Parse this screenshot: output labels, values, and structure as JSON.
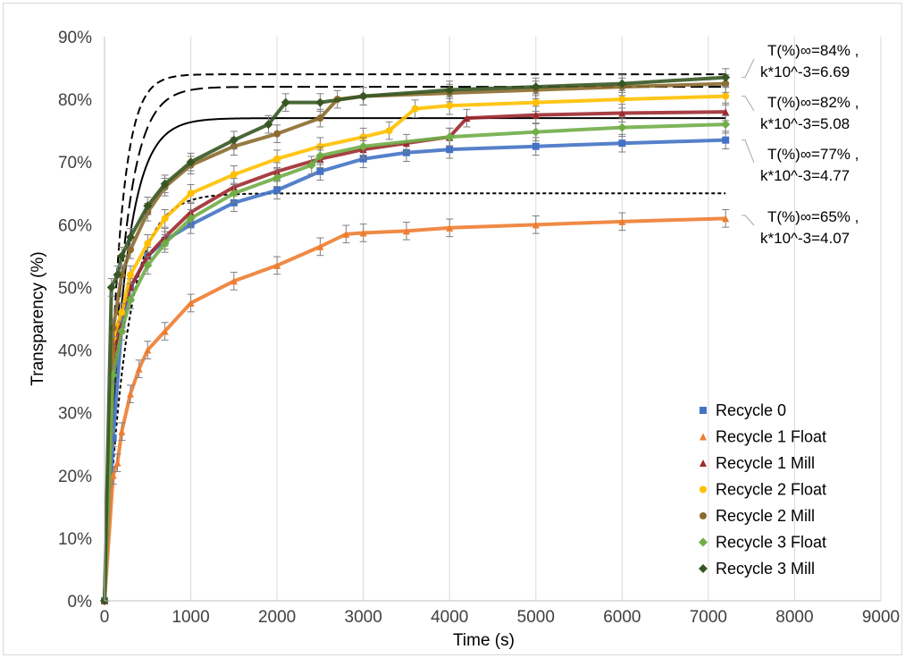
{
  "chart_data": {
    "type": "scatter",
    "xlabel": "Time (s)",
    "ylabel": "Transparency (%)",
    "xlim": [
      0,
      9000
    ],
    "ylim": [
      0,
      90
    ],
    "x_ticks": [
      "0",
      "1000",
      "2000",
      "3000",
      "4000",
      "5000",
      "6000",
      "7000",
      "8000",
      "9000"
    ],
    "y_ticks": [
      "0%",
      "10%",
      "20%",
      "30%",
      "40%",
      "50%",
      "60%",
      "70%",
      "80%",
      "90%"
    ],
    "grid": "vertical",
    "legend_position": "bottom-right",
    "series": [
      {
        "name": "Recycle 0",
        "color": "#4472c4",
        "marker": "square",
        "x": [
          0,
          100,
          200,
          300,
          500,
          700,
          1000,
          1500,
          2000,
          2500,
          3000,
          3500,
          4000,
          5000,
          6000,
          7200
        ],
        "y": [
          0,
          26,
          44,
          50,
          55,
          57.5,
          60,
          63.5,
          65.5,
          68.5,
          70.5,
          71.5,
          72,
          72.5,
          73,
          73.5
        ]
      },
      {
        "name": "Recycle 1 Float",
        "color": "#ed7d31",
        "marker": "triangle",
        "x": [
          0,
          100,
          150,
          200,
          300,
          400,
          500,
          700,
          1000,
          1500,
          2000,
          2500,
          2800,
          3000,
          3500,
          4000,
          5000,
          6000,
          7200
        ],
        "y": [
          0,
          20,
          22,
          27,
          33,
          37,
          40,
          43,
          47.5,
          51,
          53.5,
          56.5,
          58.5,
          58.7,
          59,
          59.5,
          60,
          60.5,
          61
        ]
      },
      {
        "name": "Recycle 1 Mill",
        "color": "#9e2a2f",
        "marker": "triangle",
        "x": [
          0,
          100,
          200,
          300,
          500,
          700,
          1000,
          1500,
          2000,
          2500,
          3000,
          3500,
          4000,
          4200,
          5000,
          6000,
          7200
        ],
        "y": [
          0,
          38,
          46,
          50,
          55,
          58,
          62,
          66,
          68.5,
          70.5,
          72,
          73,
          74,
          77,
          77.5,
          77.8,
          78
        ]
      },
      {
        "name": "Recycle 2 Float",
        "color": "#ffc000",
        "marker": "circle",
        "x": [
          0,
          100,
          200,
          300,
          500,
          700,
          1000,
          1500,
          2000,
          2500,
          3000,
          3300,
          3600,
          4000,
          5000,
          6000,
          7200
        ],
        "y": [
          0,
          42,
          46,
          52,
          57,
          61,
          65,
          68,
          70.5,
          72.5,
          74,
          75,
          78.5,
          79,
          79.5,
          80,
          80.5
        ]
      },
      {
        "name": "Recycle 2 Mill",
        "color": "#8b6b2e",
        "marker": "circle",
        "x": [
          0,
          100,
          200,
          300,
          500,
          700,
          1000,
          1500,
          2000,
          2500,
          2700,
          3000,
          4000,
          5000,
          6000,
          7200
        ],
        "y": [
          0,
          43.5,
          52,
          56,
          62,
          66,
          69.5,
          72.5,
          74.5,
          77,
          80,
          80.5,
          81,
          81.5,
          82,
          82.5
        ]
      },
      {
        "name": "Recycle 3 Float",
        "color": "#70ad47",
        "marker": "diamond",
        "x": [
          0,
          100,
          200,
          300,
          500,
          700,
          1000,
          1500,
          2000,
          2400,
          2500,
          3000,
          4000,
          5000,
          6000,
          7200
        ],
        "y": [
          0,
          36,
          43,
          48,
          53.5,
          57,
          61,
          65,
          67.5,
          69.5,
          71,
          72.5,
          74,
          74.8,
          75.5,
          76
        ]
      },
      {
        "name": "Recycle 3 Mill",
        "color": "#375623",
        "marker": "diamond",
        "x": [
          0,
          80,
          150,
          200,
          300,
          500,
          700,
          1000,
          1500,
          1900,
          2100,
          2500,
          3000,
          4000,
          5000,
          6000,
          7200
        ],
        "y": [
          0,
          50,
          52,
          55,
          58,
          63,
          66.5,
          70,
          73.5,
          76,
          79.5,
          79.5,
          80.5,
          81.5,
          82,
          82.5,
          83.5
        ]
      }
    ],
    "fits": [
      {
        "style": "dashed",
        "t_inf": 84,
        "k": 6.69,
        "x_end": 7200
      },
      {
        "style": "long-dash",
        "t_inf": 82,
        "k": 5.08,
        "x_end": 7200
      },
      {
        "style": "solid",
        "t_inf": 77,
        "k": 4.77,
        "x_end": 7200
      },
      {
        "style": "dotted",
        "t_inf": 65,
        "k": 4.07,
        "x_end": 7200
      }
    ],
    "annotations": [
      {
        "line1": "T(%)∞=84% ,",
        "line2": "k*10^-3=6.69",
        "target_y": 83.5
      },
      {
        "line1": "T(%)∞=82% ,",
        "line2": "k*10^-3=5.08",
        "target_y": 80.5
      },
      {
        "line1": "T(%)∞=77% ,",
        "line2": "k*10^-3=4.77",
        "target_y": 73.5
      },
      {
        "line1": "T(%)∞=65% ,",
        "line2": "k*10^-3=4.07",
        "target_y": 61.5
      }
    ]
  }
}
